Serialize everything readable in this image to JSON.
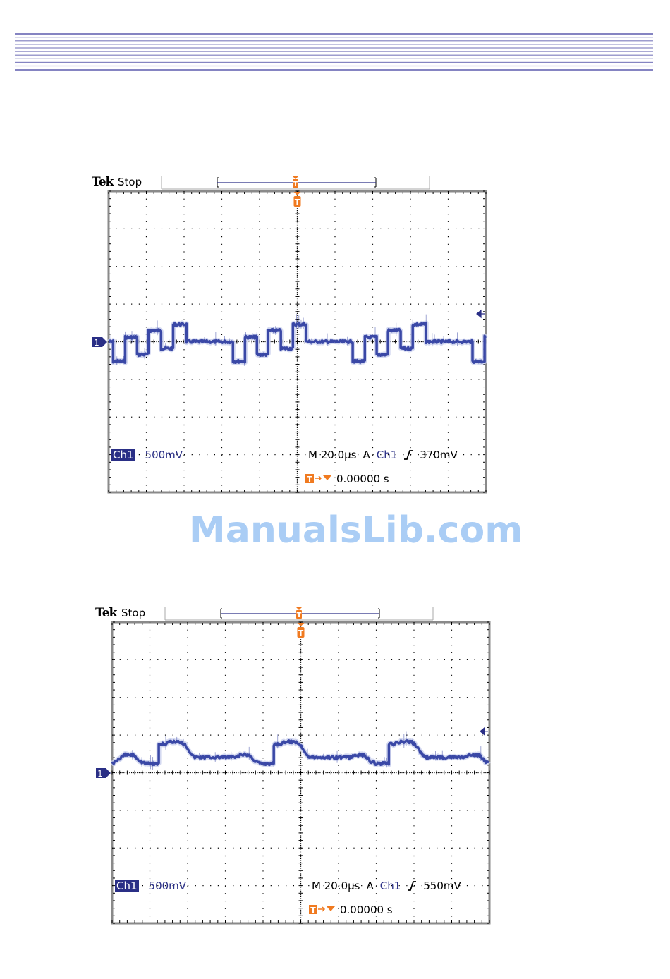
{
  "header": {
    "rule_color": "#8584c2",
    "rule_count": 11
  },
  "watermark": "ManualsLib.com",
  "colors": {
    "trace": "#3a48a6",
    "trigger_marker": "#f07a20",
    "label_blue": "#2a2f86",
    "frame": "#8a8a8a"
  },
  "scopes": [
    {
      "brand": "Tek",
      "state": "Stop",
      "ch1_label": "Ch1",
      "volts_per_div": "500mV",
      "timebase": "M 20.0µs",
      "trigger_mode": "A",
      "trigger_source": "Ch1",
      "trigger_slope_icon": "rising-edge-icon",
      "trigger_level": "370mV",
      "trigger_position": "0.00000 s",
      "ground_marker": "1",
      "chart_data": {
        "type": "line",
        "x_unit": "µs",
        "y_unit": "mV",
        "xlim": [
          -100,
          100
        ],
        "ylim": [
          -2000,
          2000
        ],
        "x_per_div": 20,
        "y_per_div": 500,
        "grid": true,
        "trigger_level_mV": 370,
        "period_us": 63.5,
        "first_period_start_us": -97.6,
        "pattern_points": [
          [
            0,
            -260
          ],
          [
            6.4,
            -260
          ],
          [
            6.4,
            60
          ],
          [
            12.7,
            60
          ],
          [
            12.7,
            -170
          ],
          [
            18.7,
            -170
          ],
          [
            18.7,
            150
          ],
          [
            25.4,
            150
          ],
          [
            25.4,
            -90
          ],
          [
            31.8,
            -90
          ],
          [
            31.8,
            230
          ],
          [
            38.9,
            230
          ],
          [
            38.9,
            0
          ],
          [
            63.5,
            0
          ]
        ]
      }
    },
    {
      "brand": "Tek",
      "state": "Stop",
      "ch1_label": "Ch1",
      "volts_per_div": "500mV",
      "timebase": "M 20.0µs",
      "trigger_mode": "A",
      "trigger_source": "Ch1",
      "trigger_slope_icon": "rising-edge-icon",
      "trigger_level": "550mV",
      "trigger_position": "0.00000 s",
      "ground_marker": "1",
      "chart_data": {
        "type": "line",
        "x_unit": "µs",
        "y_unit": "mV",
        "xlim": [
          -100,
          100
        ],
        "ylim": [
          -2000,
          2000
        ],
        "x_per_div": 20,
        "y_per_div": 500,
        "grid": true,
        "trigger_level_mV": 550,
        "period_us": 61,
        "first_period_start_us": -75.3,
        "pattern_points": [
          [
            0,
            375
          ],
          [
            3.7,
            385
          ],
          [
            6.4,
            410
          ],
          [
            12,
            410
          ],
          [
            14.2,
            365
          ],
          [
            18.7,
            205
          ],
          [
            41.2,
            205
          ],
          [
            43.1,
            235
          ],
          [
            47.9,
            235
          ],
          [
            51.3,
            150
          ],
          [
            54.3,
            120
          ],
          [
            61,
            120
          ]
        ]
      }
    }
  ]
}
